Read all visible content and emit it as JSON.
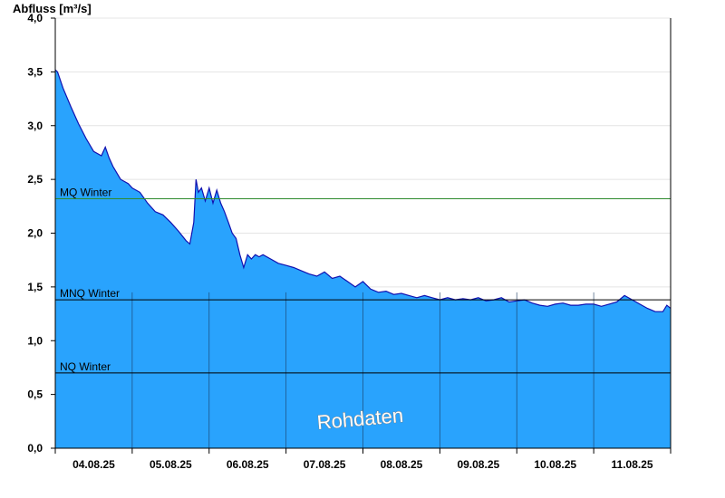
{
  "chart_data": {
    "type": "area",
    "ylabel": "Abfluss [m³/s]",
    "ylim": [
      0,
      4.0
    ],
    "yticks": [
      "0,0",
      "0,5",
      "1,0",
      "1,5",
      "2,0",
      "2,5",
      "3,0",
      "3,5",
      "4,0"
    ],
    "ytick_values": [
      0,
      0.5,
      1.0,
      1.5,
      2.0,
      2.5,
      3.0,
      3.5,
      4.0
    ],
    "xlim": [
      0,
      8
    ],
    "x_unit": "days from start of 04.08.25",
    "xticks": [
      "04.08.25",
      "05.08.25",
      "06.08.25",
      "07.08.25",
      "08.08.25",
      "09.08.25",
      "10.08.25",
      "11.08.25"
    ],
    "grid": true,
    "colors": {
      "fill": "#29a3fd",
      "line": "#1010b0",
      "mq": "#2e8b2e",
      "ref": "#000000"
    },
    "reference_lines": [
      {
        "label": "MQ Winter",
        "value": 2.32
      },
      {
        "label": "MNQ Winter",
        "value": 1.38
      },
      {
        "label": "NQ Winter",
        "value": 0.7
      }
    ],
    "watermark": "Rohdaten",
    "series": [
      {
        "x": [
          0.0,
          0.03,
          0.1,
          0.2,
          0.3,
          0.4,
          0.5,
          0.6,
          0.65,
          0.7,
          0.75,
          0.85,
          0.95,
          1.0,
          1.1,
          1.2,
          1.3,
          1.4,
          1.5,
          1.6,
          1.7,
          1.75,
          1.8,
          1.83,
          1.86,
          1.9,
          1.95,
          2.0,
          2.05,
          2.1,
          2.15,
          2.2,
          2.25,
          2.3,
          2.35,
          2.4,
          2.45,
          2.5,
          2.55,
          2.6,
          2.65,
          2.7,
          2.8,
          2.9,
          3.0,
          3.1,
          3.2,
          3.3,
          3.4,
          3.5,
          3.6,
          3.7,
          3.8,
          3.9,
          4.0,
          4.1,
          4.2,
          4.3,
          4.4,
          4.5,
          4.6,
          4.7,
          4.8,
          4.9,
          5.0,
          5.1,
          5.2,
          5.3,
          5.4,
          5.5,
          5.6,
          5.7,
          5.8,
          5.9,
          6.0,
          6.1,
          6.2,
          6.3,
          6.4,
          6.5,
          6.6,
          6.7,
          6.8,
          6.9,
          7.0,
          7.1,
          7.2,
          7.3,
          7.4,
          7.5,
          7.6,
          7.7,
          7.8,
          7.9,
          7.95,
          8.0
        ],
        "y": [
          3.52,
          3.5,
          3.35,
          3.18,
          3.02,
          2.88,
          2.76,
          2.72,
          2.8,
          2.7,
          2.62,
          2.5,
          2.46,
          2.42,
          2.38,
          2.28,
          2.2,
          2.17,
          2.1,
          2.02,
          1.93,
          1.9,
          2.1,
          2.5,
          2.38,
          2.42,
          2.3,
          2.42,
          2.28,
          2.4,
          2.28,
          2.2,
          2.1,
          2.0,
          1.95,
          1.8,
          1.68,
          1.8,
          1.76,
          1.8,
          1.78,
          1.8,
          1.76,
          1.72,
          1.7,
          1.68,
          1.65,
          1.62,
          1.6,
          1.64,
          1.58,
          1.6,
          1.55,
          1.5,
          1.55,
          1.48,
          1.45,
          1.46,
          1.43,
          1.44,
          1.42,
          1.4,
          1.42,
          1.4,
          1.38,
          1.4,
          1.38,
          1.39,
          1.38,
          1.4,
          1.37,
          1.38,
          1.4,
          1.36,
          1.37,
          1.38,
          1.35,
          1.33,
          1.32,
          1.34,
          1.35,
          1.33,
          1.33,
          1.34,
          1.34,
          1.32,
          1.34,
          1.36,
          1.42,
          1.38,
          1.34,
          1.3,
          1.27,
          1.27,
          1.33,
          1.3
        ]
      }
    ]
  }
}
